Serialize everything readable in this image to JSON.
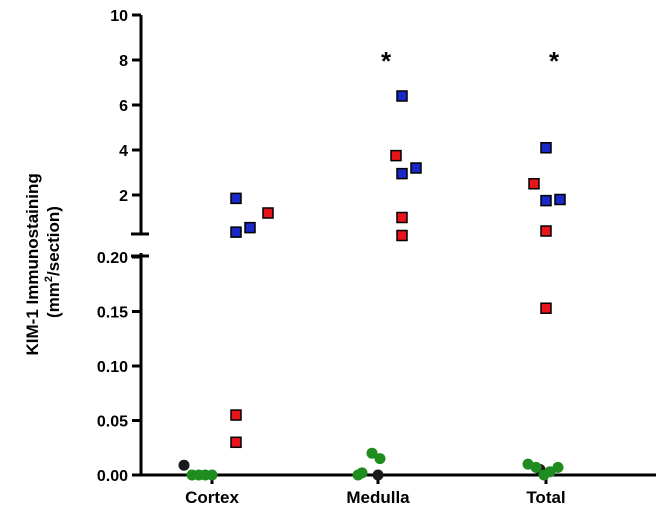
{
  "chart_data": {
    "type": "scatter",
    "title": "",
    "xlabel": "",
    "ylabel_line1": "KIM-1 Immunostaining",
    "ylabel_line2_prefix": "(mm",
    "ylabel_line2_sup": "2",
    "ylabel_line2_suffix": "/section)",
    "categories": [
      "Cortex",
      "Medulla",
      "Total"
    ],
    "y_axis_broken": true,
    "lower_segment": {
      "ylim": [
        0,
        0.2
      ],
      "ticks": [
        "0.00",
        "0.05",
        "0.10",
        "0.15",
        "0.20"
      ]
    },
    "upper_segment": {
      "ylim": [
        0,
        10
      ],
      "ticks": [
        "2",
        "4",
        "6",
        "8",
        "10"
      ]
    },
    "significance_markers": [
      {
        "category": "Medulla",
        "symbol": "*"
      },
      {
        "category": "Total",
        "symbol": "*"
      }
    ],
    "series": [
      {
        "marker": "circle",
        "color": "#1a1a1a",
        "points": [
          {
            "category": "Cortex",
            "offset": -0.7,
            "y": 0.009
          },
          {
            "category": "Medulla",
            "offset": 0.0,
            "y": 0.0
          },
          {
            "category": "Total",
            "offset": -0.15,
            "y": 0.005
          }
        ]
      },
      {
        "marker": "circle",
        "color": "#1e8c1e",
        "points": [
          {
            "category": "Cortex",
            "offset": -0.5,
            "y": 0.0
          },
          {
            "category": "Cortex",
            "offset": -0.33,
            "y": 0.0
          },
          {
            "category": "Cortex",
            "offset": -0.17,
            "y": 0.0
          },
          {
            "category": "Cortex",
            "offset": 0.0,
            "y": 0.0
          },
          {
            "category": "Medulla",
            "offset": -0.4,
            "y": 0.002
          },
          {
            "category": "Medulla",
            "offset": -0.5,
            "y": 0.0
          },
          {
            "category": "Medulla",
            "offset": -0.15,
            "y": 0.02
          },
          {
            "category": "Medulla",
            "offset": 0.05,
            "y": 0.015
          },
          {
            "category": "Total",
            "offset": -0.45,
            "y": 0.01
          },
          {
            "category": "Total",
            "offset": -0.25,
            "y": 0.007
          },
          {
            "category": "Total",
            "offset": -0.05,
            "y": 0.0
          },
          {
            "category": "Total",
            "offset": 0.1,
            "y": 0.003
          },
          {
            "category": "Total",
            "offset": 0.3,
            "y": 0.007
          }
        ]
      },
      {
        "marker": "square",
        "color": "#e8141b",
        "points": [
          {
            "category": "Cortex",
            "offset": 0.6,
            "segment": "lower",
            "y": 0.055
          },
          {
            "category": "Cortex",
            "offset": 0.6,
            "segment": "lower",
            "y": 0.03
          },
          {
            "category": "Cortex",
            "offset": 1.4,
            "segment": "upper",
            "y": 1.2
          },
          {
            "category": "Medulla",
            "offset": 0.45,
            "segment": "upper",
            "y": 3.75
          },
          {
            "category": "Medulla",
            "offset": 0.6,
            "segment": "upper",
            "y": 1.0
          },
          {
            "category": "Medulla",
            "offset": 0.6,
            "segment": "upper",
            "y": 0.2
          },
          {
            "category": "Total",
            "offset": -0.3,
            "segment": "upper",
            "y": 2.5
          },
          {
            "category": "Total",
            "offset": 0.0,
            "segment": "upper",
            "y": 0.4
          },
          {
            "category": "Total",
            "offset": 0.0,
            "segment": "lower",
            "y": 0.153
          }
        ]
      },
      {
        "marker": "square",
        "color": "#1a28c8",
        "points": [
          {
            "category": "Cortex",
            "offset": 0.6,
            "segment": "upper",
            "y": 1.85
          },
          {
            "category": "Cortex",
            "offset": 0.6,
            "segment": "upper",
            "y": 0.35
          },
          {
            "category": "Cortex",
            "offset": 0.95,
            "segment": "upper",
            "y": 0.55
          },
          {
            "category": "Medulla",
            "offset": 0.6,
            "segment": "upper",
            "y": 6.4
          },
          {
            "category": "Medulla",
            "offset": 0.6,
            "segment": "upper",
            "y": 2.95
          },
          {
            "category": "Medulla",
            "offset": 0.95,
            "segment": "upper",
            "y": 3.2
          },
          {
            "category": "Total",
            "offset": 0.0,
            "segment": "upper",
            "y": 4.1
          },
          {
            "category": "Total",
            "offset": 0.0,
            "segment": "upper",
            "y": 1.75
          },
          {
            "category": "Total",
            "offset": 0.35,
            "segment": "upper",
            "y": 1.8
          }
        ]
      }
    ]
  }
}
